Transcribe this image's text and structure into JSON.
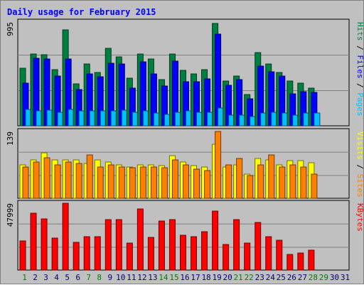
{
  "chart_data": {
    "type": "bar",
    "title": "Daily usage for February 2015",
    "x": [
      "1",
      "2",
      "3",
      "4",
      "5",
      "6",
      "7",
      "8",
      "9",
      "10",
      "11",
      "12",
      "13",
      "14",
      "15",
      "16",
      "17",
      "18",
      "19",
      "20",
      "21",
      "22",
      "23",
      "24",
      "25",
      "26",
      "27",
      "28",
      "29",
      "30",
      "31"
    ],
    "weekend_days": [
      "1",
      "7",
      "8",
      "14",
      "15",
      "21",
      "22",
      "28",
      "29"
    ],
    "panels": [
      {
        "name": "hits-files-pages",
        "max_label": "995",
        "ymax": 995,
        "legend": [
          "Pages",
          "Files",
          "Hits"
        ],
        "series": [
          {
            "name": "Hits",
            "color": "#008040",
            "values": [
              550,
              690,
              680,
              540,
              920,
              400,
              590,
              510,
              740,
              660,
              460,
              685,
              640,
              440,
              690,
              530,
              500,
              540,
              980,
              430,
              480,
              300,
              700,
              590,
              510,
              430,
              410,
              360,
              0,
              0,
              0
            ]
          },
          {
            "name": "Files",
            "color": "#0000ff",
            "values": [
              410,
              650,
              640,
              480,
              640,
              350,
              500,
              470,
              600,
              590,
              360,
              610,
              500,
              380,
              620,
              420,
              420,
              450,
              880,
              390,
              440,
              260,
              570,
              520,
              480,
              310,
              330,
              320,
              0,
              0,
              0
            ]
          },
          {
            "name": "Pages",
            "color": "#00c0ff",
            "values": [
              160,
              140,
              150,
              130,
              160,
              140,
              140,
              140,
              140,
              150,
              130,
              140,
              120,
              110,
              130,
              140,
              130,
              130,
              170,
              100,
              100,
              90,
              120,
              130,
              120,
              100,
              120,
              120,
              0,
              0,
              0
            ]
          }
        ]
      },
      {
        "name": "visits-sites",
        "max_label": "139",
        "ymax": 139,
        "legend": [
          "Sites",
          "Visits"
        ],
        "series": [
          {
            "name": "Visits",
            "color": "#ffff00",
            "values": [
              70,
              80,
              95,
              80,
              80,
              80,
              73,
              80,
              75,
              70,
              65,
              70,
              70,
              68,
              88,
              75,
              68,
              65,
              113,
              65,
              70,
              50,
              83,
              80,
              70,
              78,
              78,
              74,
              0,
              0,
              0
            ]
          },
          {
            "name": "Sites",
            "color": "#ff8000",
            "values": [
              65,
              75,
              85,
              70,
              75,
              73,
              90,
              65,
              70,
              65,
              63,
              65,
              65,
              63,
              80,
              70,
              60,
              58,
              139,
              70,
              83,
              48,
              70,
              90,
              65,
              70,
              65,
              50,
              0,
              0,
              0
            ]
          }
        ]
      },
      {
        "name": "kbytes",
        "max_label": "47999",
        "ymax": 47999,
        "legend": [
          "KBytes"
        ],
        "series": [
          {
            "name": "KBytes",
            "color": "#ff0000",
            "values": [
              21000,
              41000,
              37000,
              23000,
              47999,
              20000,
              24000,
              24000,
              36000,
              36500,
              19500,
              44000,
              23500,
              35000,
              36500,
              25000,
              24000,
              27500,
              42500,
              18500,
              36000,
              19500,
              34000,
              24000,
              21500,
              11000,
              12500,
              14500,
              0,
              0,
              0
            ]
          }
        ]
      }
    ],
    "colors": {
      "background": "#c0c0c0",
      "plot": "#c0c0c0",
      "grid": "#808080",
      "title": "#0000ff",
      "weekday_label": "#000080",
      "weekend_label": "#008000"
    }
  }
}
